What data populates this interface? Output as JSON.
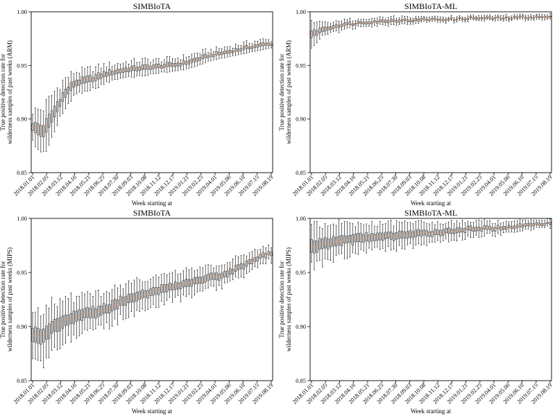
{
  "chart_data": [
    {
      "type": "box",
      "title": "SIMBIoTA",
      "xlabel": "Week starting at",
      "ylabel_lines": [
        "True positive detection rate for",
        "wilderness samples of past weeks (ARM)"
      ],
      "ylim": [
        0.85,
        1.0
      ],
      "yticks": [
        "0.85",
        "0.90",
        "0.95",
        "1.00"
      ],
      "grid": false,
      "xtick_labels": [
        "2018.01.01",
        "2018.02.05",
        "2018.03.12",
        "2018.04.16",
        "2018.05.21",
        "2018.06.25",
        "2018.07.30",
        "2018.09.03",
        "2018.10.08",
        "2018.11.12",
        "2018.12.17",
        "2019.01.21",
        "2019.02.25",
        "2019.04.01",
        "2019.05.06",
        "2019.06.10",
        "2019.07.15",
        "2019.08.19"
      ],
      "median_trend": [
        0.893,
        0.888,
        0.905,
        0.922,
        0.933,
        0.936,
        0.938,
        0.942,
        0.944,
        0.946,
        0.947,
        0.948,
        0.949,
        0.95,
        0.951,
        0.953,
        0.956,
        0.959,
        0.961,
        0.963,
        0.965,
        0.967,
        0.969,
        0.97
      ],
      "spread": [
        0.012,
        0.018,
        0.016,
        0.012,
        0.009,
        0.008,
        0.008,
        0.007,
        0.006,
        0.006,
        0.006,
        0.006,
        0.005,
        0.005,
        0.005,
        0.005,
        0.005,
        0.004,
        0.004,
        0.004,
        0.004,
        0.004,
        0.004,
        0.003
      ]
    },
    {
      "type": "box",
      "title": "SIMBIoTA-ML",
      "xlabel": "Week starting at",
      "ylabel_lines": [
        "True positive detection rate for",
        "wilderness samples of past weeks (ARM)"
      ],
      "ylim": [
        0.85,
        1.0
      ],
      "yticks": [
        "0.85",
        "0.90",
        "0.95",
        "1.00"
      ],
      "grid": false,
      "xtick_labels": [
        "2018.01.01",
        "2018.02.05",
        "2018.03.12",
        "2018.04.16",
        "2018.05.21",
        "2018.06.25",
        "2018.07.30",
        "2018.09.03",
        "2018.10.08",
        "2018.11.12",
        "2018.12.17",
        "2019.01.21",
        "2019.02.25",
        "2019.04.01",
        "2019.05.06",
        "2019.06.10",
        "2019.07.15",
        "2019.08.19"
      ],
      "median_trend": [
        0.979,
        0.983,
        0.986,
        0.988,
        0.989,
        0.99,
        0.991,
        0.991,
        0.992,
        0.992,
        0.992,
        0.993,
        0.993,
        0.993,
        0.993,
        0.994,
        0.994,
        0.994,
        0.994,
        0.994,
        0.995,
        0.995,
        0.995,
        0.995
      ],
      "spread": [
        0.01,
        0.006,
        0.004,
        0.004,
        0.003,
        0.003,
        0.003,
        0.003,
        0.003,
        0.003,
        0.003,
        0.002,
        0.002,
        0.002,
        0.002,
        0.002,
        0.002,
        0.002,
        0.002,
        0.002,
        0.002,
        0.002,
        0.002,
        0.002
      ]
    },
    {
      "type": "box",
      "title": "SIMBIoTA",
      "xlabel": "Week starting at",
      "ylabel_lines": [
        "True positive detection rate for",
        "wilderness samples of past weeks (MIPS)"
      ],
      "ylim": [
        0.85,
        1.0
      ],
      "yticks": [
        "0.85",
        "0.90",
        "0.95",
        "1.00"
      ],
      "grid": false,
      "xtick_labels": [
        "2018.01.01",
        "2018.02.05",
        "2018.03.12",
        "2018.04.16",
        "2018.05.21",
        "2018.06.25",
        "2018.07.30",
        "2018.09.03",
        "2018.10.08",
        "2018.11.12",
        "2018.12.17",
        "2019.01.21",
        "2019.02.25",
        "2019.04.01",
        "2019.05.06",
        "2019.06.10",
        "2019.07.15",
        "2019.08.19"
      ],
      "median_trend": [
        0.893,
        0.89,
        0.9,
        0.905,
        0.909,
        0.912,
        0.913,
        0.916,
        0.92,
        0.925,
        0.927,
        0.93,
        0.933,
        0.936,
        0.938,
        0.94,
        0.942,
        0.945,
        0.947,
        0.95,
        0.955,
        0.96,
        0.965,
        0.968
      ],
      "spread": [
        0.018,
        0.022,
        0.02,
        0.017,
        0.015,
        0.014,
        0.014,
        0.013,
        0.013,
        0.012,
        0.012,
        0.011,
        0.011,
        0.01,
        0.01,
        0.01,
        0.01,
        0.009,
        0.009,
        0.008,
        0.008,
        0.007,
        0.006,
        0.006
      ]
    },
    {
      "type": "box",
      "title": "SIMBIoTA-ML",
      "xlabel": "Week starting at",
      "ylabel_lines": [
        "True positive detection rate for",
        "wilderness samples of past weeks (MIPS)"
      ],
      "ylim": [
        0.85,
        1.0
      ],
      "yticks": [
        "0.85",
        "0.90",
        "0.95",
        "1.00"
      ],
      "grid": false,
      "xtick_labels": [
        "2018.01.01",
        "2018.02.05",
        "2018.03.12",
        "2018.04.16",
        "2018.05.21",
        "2018.06.25",
        "2018.07.30",
        "2018.09.03",
        "2018.10.08",
        "2018.11.12",
        "2018.12.17",
        "2019.01.21",
        "2019.02.25",
        "2019.04.01",
        "2019.05.06",
        "2019.06.10",
        "2019.07.15",
        "2019.08.19"
      ],
      "median_trend": [
        0.974,
        0.976,
        0.978,
        0.98,
        0.981,
        0.982,
        0.983,
        0.983,
        0.984,
        0.985,
        0.986,
        0.986,
        0.987,
        0.988,
        0.989,
        0.99,
        0.99,
        0.991,
        0.991,
        0.992,
        0.993,
        0.994,
        0.995,
        0.996
      ],
      "spread": [
        0.016,
        0.015,
        0.014,
        0.013,
        0.012,
        0.011,
        0.01,
        0.01,
        0.01,
        0.009,
        0.009,
        0.008,
        0.008,
        0.007,
        0.007,
        0.006,
        0.006,
        0.005,
        0.005,
        0.004,
        0.004,
        0.004,
        0.003,
        0.003
      ]
    }
  ],
  "style": {
    "box_fill": "#bdbdbd",
    "box_edge": "#000000",
    "median_color": "#e8a070",
    "axis_color": "#000000"
  }
}
